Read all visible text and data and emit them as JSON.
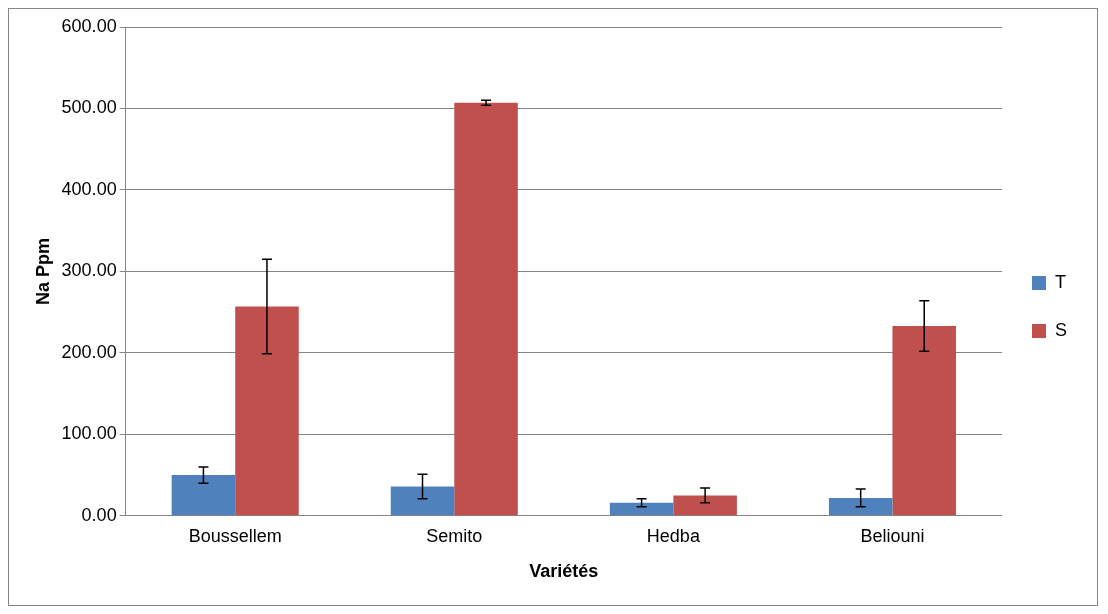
{
  "chart_data": {
    "type": "bar",
    "xlabel": "Variétés",
    "ylabel": "Na Ppm",
    "categories": [
      "Boussellem",
      "Semito",
      "Hedba",
      "Beliouni"
    ],
    "series": [
      {
        "name": "T",
        "color": "#4f81bd",
        "values": [
          50,
          36,
          16,
          22
        ],
        "errors": [
          10,
          15,
          5,
          11
        ]
      },
      {
        "name": "S",
        "color": "#c0504d",
        "values": [
          257,
          507,
          25,
          233
        ],
        "errors": [
          58,
          3,
          9,
          31
        ]
      }
    ],
    "ylim": [
      0,
      600
    ],
    "yticks": [
      {
        "value": 0,
        "label": "0.00"
      },
      {
        "value": 100,
        "label": "100.00"
      },
      {
        "value": 200,
        "label": "200.00"
      },
      {
        "value": 300,
        "label": "300.00"
      },
      {
        "value": 400,
        "label": "400.00"
      },
      {
        "value": 500,
        "label": "500.00"
      },
      {
        "value": 600,
        "label": "600.00"
      }
    ],
    "grid": "y",
    "legend": "right"
  }
}
